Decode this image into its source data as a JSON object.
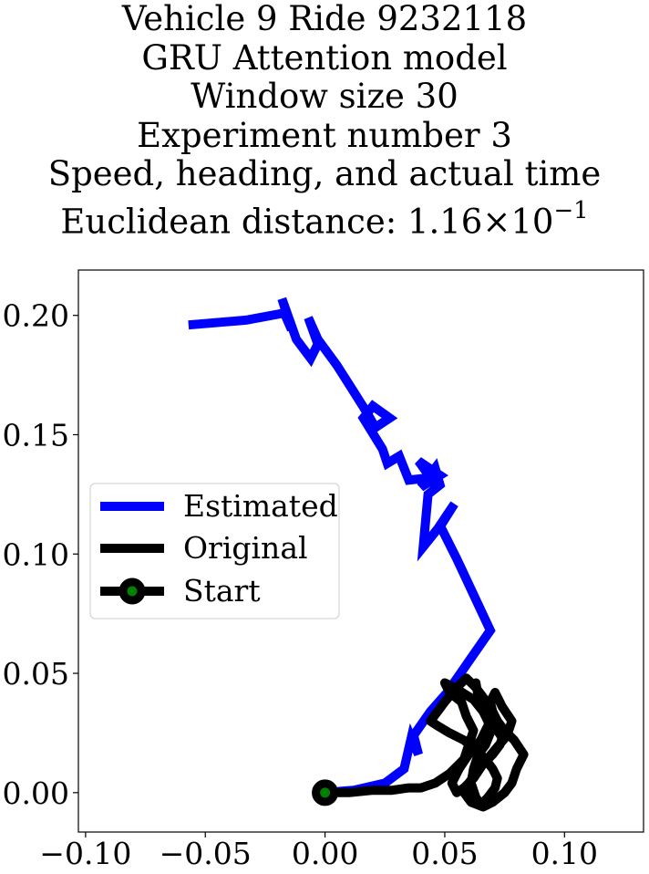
{
  "title_lines": [
    "Vehicle 9 Ride 9232118",
    "GRU Attention model",
    "Window size 30",
    "Experiment number 3",
    "Speed, heading, and actual time"
  ],
  "distance_line": {
    "prefix": "Euclidean distance: ",
    "mantissa": "1.16",
    "times": "×10",
    "exponent": "−1"
  },
  "colors": {
    "estimated": "#0000ff",
    "original": "#000000",
    "start_marker_face": "#008000",
    "start_marker_edge": "#000000"
  },
  "chart_data": {
    "type": "line",
    "xlim": [
      -0.103,
      0.133
    ],
    "ylim": [
      -0.0165,
      0.219
    ],
    "xticks": [
      -0.1,
      -0.05,
      0.0,
      0.05,
      0.1
    ],
    "xtick_labels": [
      "−0.10",
      "−0.05",
      "0.00",
      "0.05",
      "0.10"
    ],
    "yticks": [
      0.0,
      0.05,
      0.1,
      0.15,
      0.2
    ],
    "ytick_labels": [
      "0.00",
      "0.05",
      "0.10",
      "0.15",
      "0.20"
    ],
    "grid": false,
    "legend_position": "center-left",
    "series": [
      {
        "name": "Estimated",
        "x": [
          0.0,
          0.012,
          0.025,
          0.033,
          0.036,
          0.039,
          0.037,
          0.044,
          0.051,
          0.06,
          0.069,
          0.062,
          0.055,
          0.048,
          0.054,
          0.049,
          0.045,
          0.041,
          0.043,
          0.048,
          0.046,
          0.04,
          0.048,
          0.039,
          0.044,
          0.035,
          0.031,
          0.026,
          0.024,
          0.016,
          0.02,
          0.027,
          0.021,
          0.017,
          0.012,
          0.005,
          -0.003,
          -0.007,
          -0.003,
          -0.006,
          -0.012,
          -0.018,
          -0.014,
          -0.017,
          -0.033,
          -0.057
        ],
        "y": [
          0.0,
          0.001,
          0.004,
          0.01,
          0.023,
          0.016,
          0.024,
          0.034,
          0.042,
          0.055,
          0.068,
          0.083,
          0.098,
          0.112,
          0.121,
          0.113,
          0.108,
          0.103,
          0.125,
          0.129,
          0.136,
          0.128,
          0.133,
          0.139,
          0.132,
          0.131,
          0.141,
          0.138,
          0.144,
          0.157,
          0.162,
          0.157,
          0.153,
          0.16,
          0.168,
          0.179,
          0.19,
          0.199,
          0.188,
          0.182,
          0.19,
          0.207,
          0.194,
          0.201,
          0.198,
          0.196
        ]
      },
      {
        "name": "Original",
        "x": [
          0.0,
          0.01,
          0.02,
          0.028,
          0.035,
          0.04,
          0.046,
          0.052,
          0.058,
          0.06,
          0.062,
          0.059,
          0.057,
          0.052,
          0.05,
          0.054,
          0.062,
          0.066,
          0.07,
          0.072,
          0.074,
          0.073,
          0.07,
          0.066,
          0.063,
          0.06,
          0.058,
          0.061,
          0.066,
          0.07,
          0.075,
          0.078,
          0.08,
          0.083,
          0.079,
          0.075,
          0.072,
          0.07,
          0.069,
          0.071,
          0.074,
          0.078,
          0.076,
          0.071,
          0.066,
          0.062,
          0.058,
          0.055,
          0.053,
          0.056,
          0.06,
          0.065,
          0.068,
          0.07,
          0.066,
          0.063,
          0.059,
          0.055,
          0.05,
          0.047,
          0.044,
          0.047,
          0.052,
          0.058,
          0.063,
          0.067,
          0.07,
          0.072,
          0.071,
          0.068,
          0.065,
          0.063,
          0.061,
          0.062,
          0.064,
          0.067,
          0.069,
          0.068,
          0.066,
          0.064,
          0.063
        ],
        "y": [
          0.0,
          0.0,
          0.001,
          0.001,
          0.002,
          0.002,
          0.004,
          0.008,
          0.014,
          0.02,
          0.026,
          0.032,
          0.038,
          0.042,
          0.046,
          0.044,
          0.039,
          0.034,
          0.03,
          0.026,
          0.023,
          0.02,
          0.016,
          0.012,
          0.008,
          0.004,
          0.0,
          -0.004,
          -0.006,
          -0.004,
          0.0,
          0.004,
          0.01,
          0.016,
          0.022,
          0.026,
          0.03,
          0.034,
          0.038,
          0.042,
          0.036,
          0.03,
          0.024,
          0.018,
          0.012,
          0.006,
          0.002,
          0.0,
          0.004,
          0.01,
          0.016,
          0.022,
          0.028,
          0.034,
          0.04,
          0.044,
          0.048,
          0.044,
          0.038,
          0.034,
          0.03,
          0.028,
          0.025,
          0.022,
          0.018,
          0.014,
          0.01,
          0.006,
          0.002,
          -0.002,
          -0.005,
          -0.002,
          0.004,
          0.01,
          0.016,
          0.02,
          0.025,
          0.03,
          0.034,
          0.04,
          0.046
        ]
      },
      {
        "name": "Start",
        "x": [
          0.0
        ],
        "y": [
          0.0
        ]
      }
    ]
  }
}
